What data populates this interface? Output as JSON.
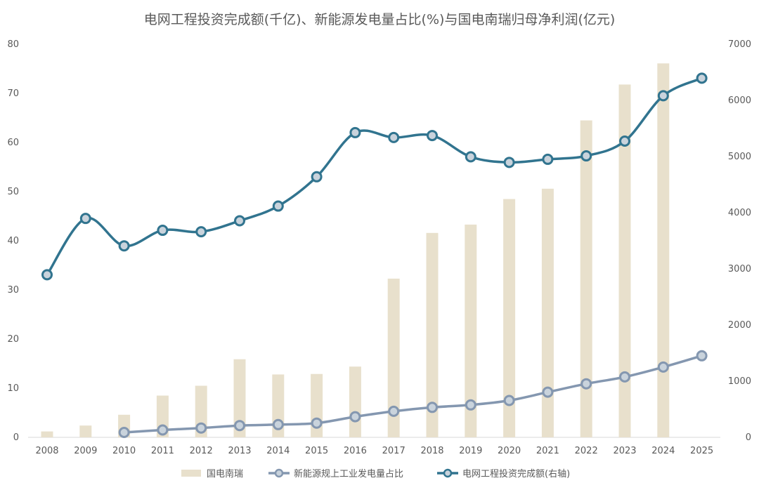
{
  "chart_data": {
    "type": "bar",
    "title": "电网工程投资完成额(千亿)、新能源发电量占比(%)与国电南瑞归母净利润(亿元)",
    "categories": [
      "2008",
      "2009",
      "2010",
      "2011",
      "2012",
      "2013",
      "2014",
      "2015",
      "2016",
      "2017",
      "2018",
      "2019",
      "2020",
      "2021",
      "2022",
      "2023",
      "2024",
      "2025"
    ],
    "y_left": {
      "min": 0,
      "max": 80,
      "ticks": [
        "0",
        "10",
        "20",
        "30",
        "40",
        "50",
        "60",
        "70",
        "80"
      ]
    },
    "y_right": {
      "min": 0,
      "max": 7000,
      "ticks": [
        "0",
        "1000",
        "2000",
        "3000",
        "4000",
        "5000",
        "6000",
        "7000"
      ]
    },
    "series": [
      {
        "name": "国电南瑞",
        "type": "bar",
        "axis": "left",
        "color": "#e8e0cc",
        "values": [
          1.2,
          2.4,
          4.6,
          8.5,
          10.5,
          15.9,
          12.8,
          12.9,
          14.4,
          32.3,
          41.6,
          43.3,
          48.5,
          50.6,
          64.5,
          71.8,
          76.1,
          null
        ]
      },
      {
        "name": "新能源规上工业发电量占比",
        "type": "line",
        "axis": "left",
        "color": "#8497b0",
        "values": [
          null,
          null,
          1.0,
          1.5,
          1.9,
          2.4,
          2.6,
          2.9,
          4.2,
          5.3,
          6.1,
          6.6,
          7.5,
          9.2,
          10.9,
          12.3,
          14.3,
          16.6
        ]
      },
      {
        "name": "电网工程投资完成额(右轴)",
        "type": "line",
        "axis": "right",
        "color": "#31748f",
        "values": [
          2895,
          3898,
          3410,
          3687,
          3661,
          3856,
          4118,
          4640,
          5426,
          5339,
          5374,
          4995,
          4896,
          4951,
          5012,
          5275,
          6083,
          6395
        ]
      }
    ],
    "legend_position": "bottom",
    "grid": false
  }
}
